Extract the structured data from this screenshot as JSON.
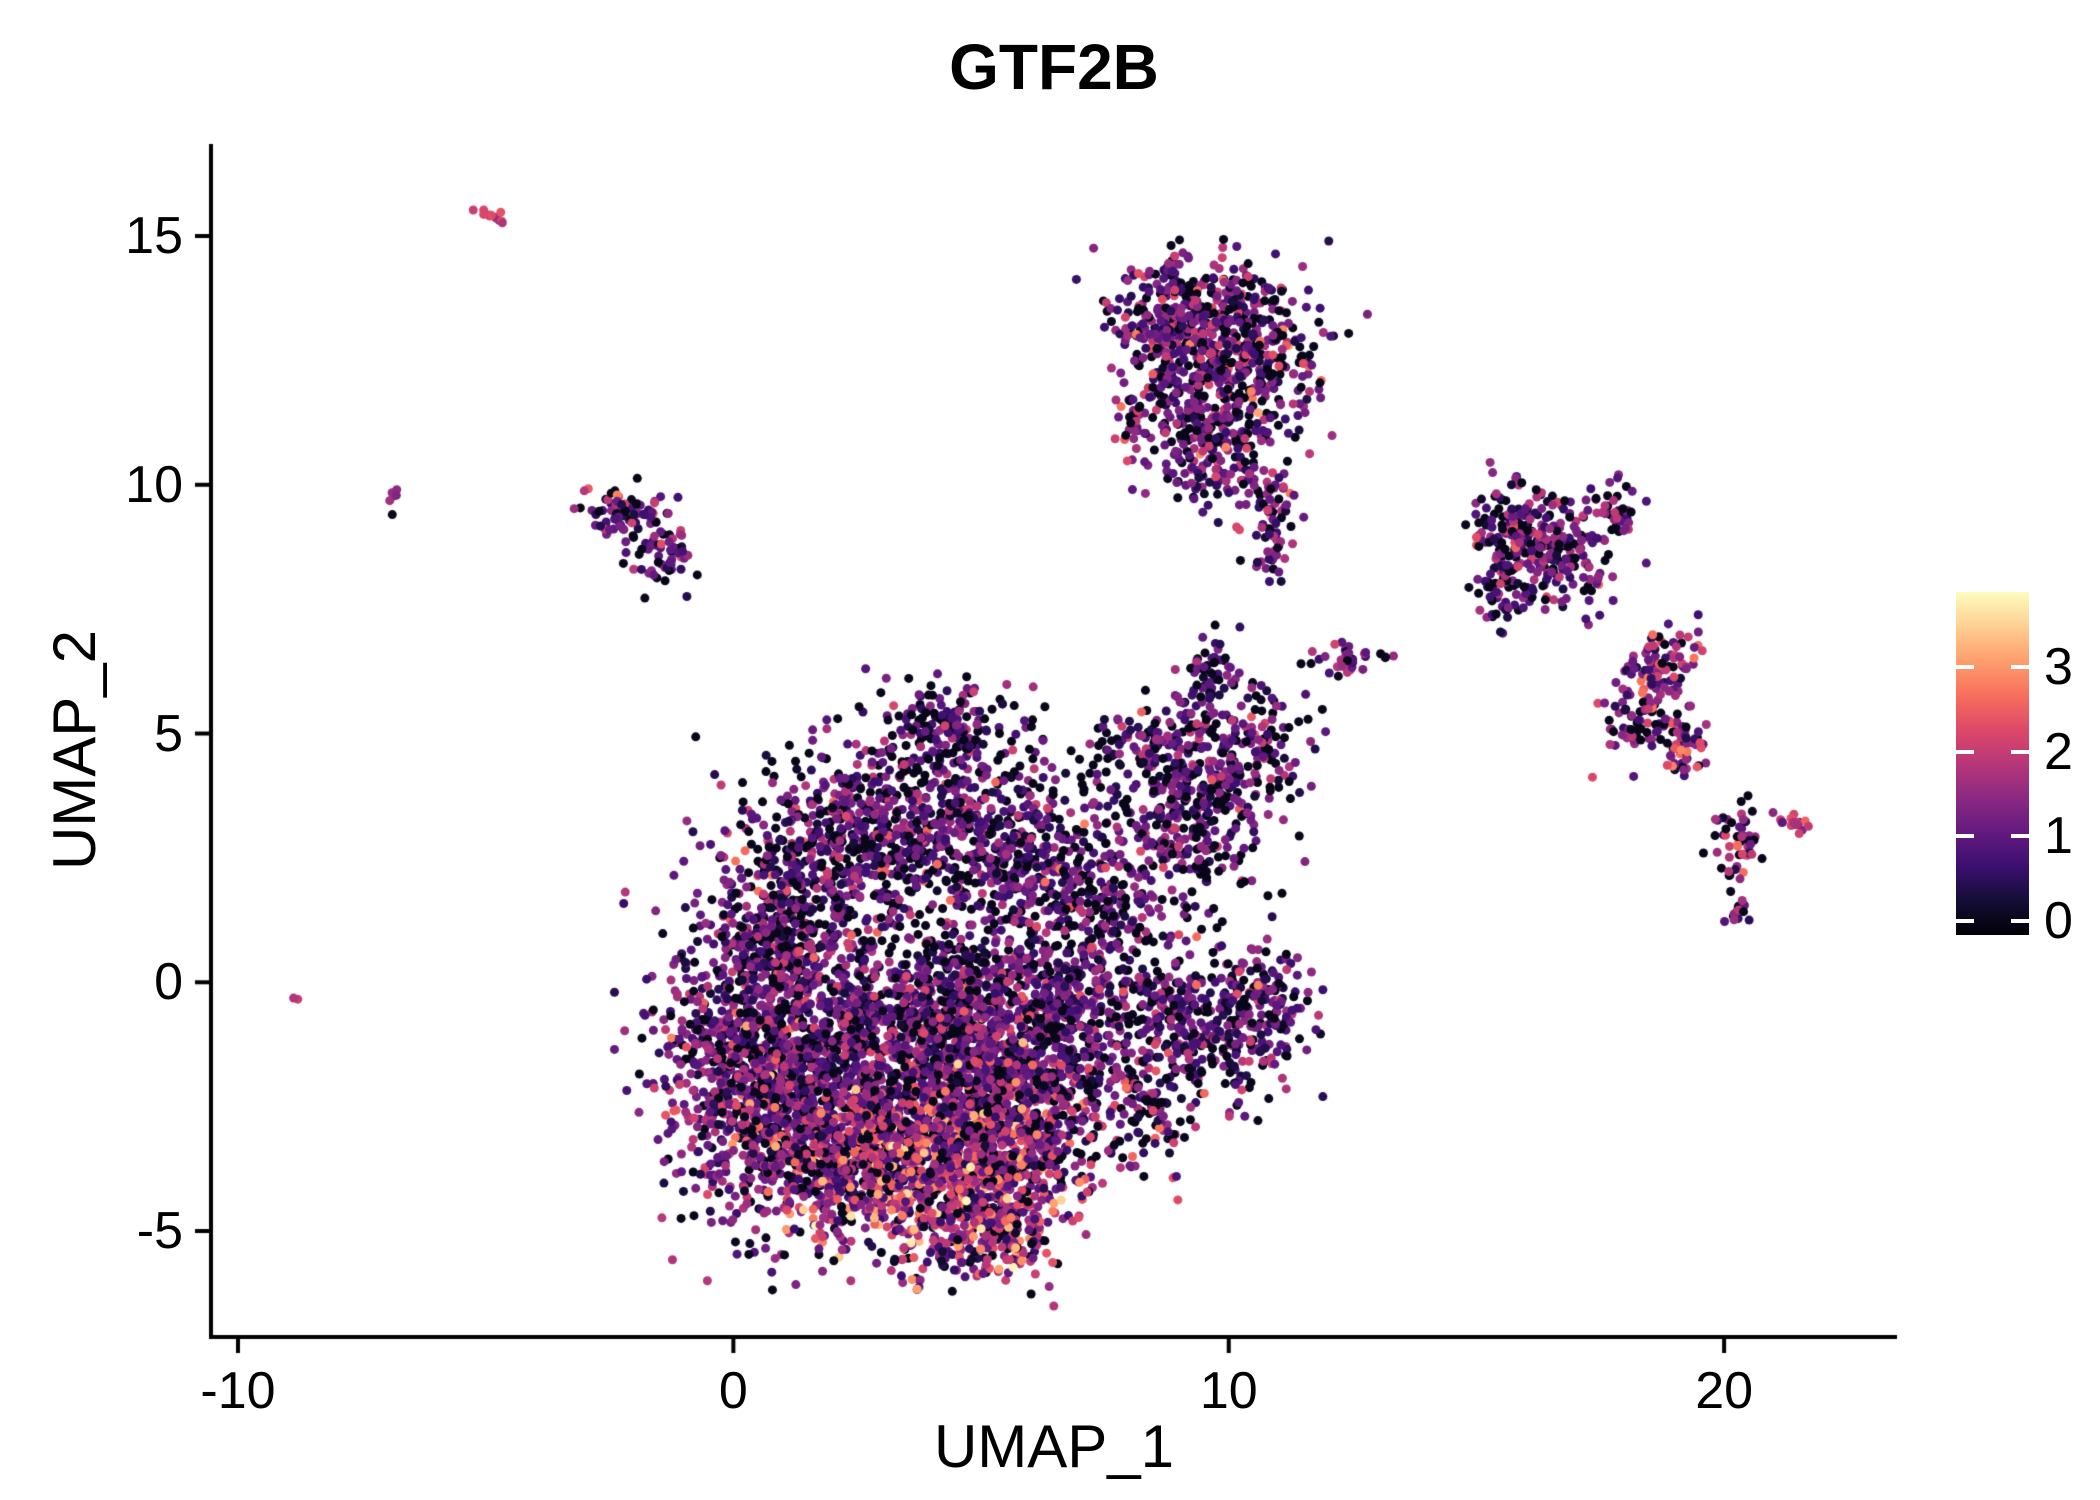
{
  "title": "GTF2B",
  "colors": {
    "background": "#ffffff",
    "axis": "#000000",
    "text": "#000000",
    "colorbar_tick": "#ffffff",
    "magma_anchors": [
      "#000004",
      "#140e36",
      "#3b0f70",
      "#641a80",
      "#8c2981",
      "#b73779",
      "#de4968",
      "#f7705c",
      "#fe9f6d",
      "#fecf92",
      "#fcfdbf"
    ]
  },
  "chart_data": {
    "type": "scatter",
    "title": "GTF2B",
    "xlabel": "UMAP_1",
    "ylabel": "UMAP_2",
    "xlim": [
      -10.545,
      23.49
    ],
    "ylim": [
      -7.13,
      16.85
    ],
    "x_ticks": [
      -10,
      0,
      10,
      20
    ],
    "y_ticks": [
      -5,
      0,
      5,
      10,
      15
    ],
    "grid": false,
    "point_radius_px": 4.5,
    "seed": 42,
    "legend": {
      "position": "right",
      "type": "colorbar",
      "colormap": "magma",
      "ticks": [
        0,
        1,
        2,
        3
      ],
      "bar_value_min": -0.165,
      "bar_value_max": 3.89
    },
    "clusters": [
      {
        "cx": 0.3,
        "cy": -1.5,
        "sx": 0.9,
        "sy": 1.5,
        "n": 800,
        "p0": 0.18,
        "m": 1.15,
        "s": 0.6
      },
      {
        "cx": 1.6,
        "cy": -3.0,
        "sx": 1.0,
        "sy": 1.0,
        "n": 550,
        "p0": 0.15,
        "m": 1.4,
        "s": 0.8
      },
      {
        "cx": 3.2,
        "cy": -3.6,
        "sx": 1.1,
        "sy": 0.9,
        "n": 650,
        "p0": 0.14,
        "m": 1.7,
        "s": 0.9
      },
      {
        "cx": 4.8,
        "cy": -4.0,
        "sx": 1.0,
        "sy": 0.8,
        "n": 500,
        "p0": 0.14,
        "m": 1.8,
        "s": 0.9
      },
      {
        "cx": 5.9,
        "cy": -2.6,
        "sx": 0.9,
        "sy": 1.0,
        "n": 450,
        "p0": 0.18,
        "m": 1.4,
        "s": 0.8
      },
      {
        "cx": 4.5,
        "cy": -2.0,
        "sx": 1.2,
        "sy": 1.0,
        "n": 500,
        "p0": 0.2,
        "m": 1.3,
        "s": 0.7
      },
      {
        "cx": 2.6,
        "cy": -0.9,
        "sx": 1.2,
        "sy": 1.0,
        "n": 550,
        "p0": 0.22,
        "m": 1.1,
        "s": 0.6
      },
      {
        "cx": 4.8,
        "cy": -0.4,
        "sx": 1.0,
        "sy": 0.9,
        "n": 400,
        "p0": 0.27,
        "m": 1.0,
        "s": 0.6
      },
      {
        "cx": 6.6,
        "cy": -0.6,
        "sx": 0.8,
        "sy": 1.2,
        "n": 400,
        "p0": 0.2,
        "m": 1.1,
        "s": 0.6
      },
      {
        "cx": 2.2,
        "cy": 2.7,
        "sx": 1.2,
        "sy": 0.9,
        "n": 500,
        "p0": 0.27,
        "m": 1.1,
        "s": 0.7
      },
      {
        "cx": 4.3,
        "cy": 3.2,
        "sx": 1.1,
        "sy": 0.7,
        "n": 350,
        "p0": 0.27,
        "m": 1.0,
        "s": 0.6
      },
      {
        "cx": 6.0,
        "cy": 2.3,
        "sx": 0.8,
        "sy": 0.9,
        "n": 250,
        "p0": 0.25,
        "m": 1.0,
        "s": 0.6
      },
      {
        "cx": 4.3,
        "cy": 5.0,
        "sx": 0.9,
        "sy": 0.5,
        "n": 200,
        "p0": 0.3,
        "m": 0.9,
        "s": 0.6
      },
      {
        "cx": 5.3,
        "cy": -5.1,
        "sx": 0.7,
        "sy": 0.5,
        "n": 150,
        "p0": 0.14,
        "m": 1.6,
        "s": 0.9
      },
      {
        "cx": 7.5,
        "cy": 1.5,
        "sx": 0.5,
        "sy": 0.9,
        "n": 150,
        "p0": 0.25,
        "m": 1.0,
        "s": 0.6
      },
      {
        "cx": 0.9,
        "cy": 0.8,
        "sx": 0.7,
        "sy": 0.7,
        "n": 250,
        "p0": 0.2,
        "m": 1.1,
        "s": 0.6
      },
      {
        "cx": 9.2,
        "cy": -0.9,
        "sx": 0.9,
        "sy": 0.9,
        "n": 320,
        "p0": 0.25,
        "m": 1.0,
        "s": 0.6
      },
      {
        "cx": 10.7,
        "cy": -0.4,
        "sx": 0.5,
        "sy": 0.6,
        "n": 130,
        "p0": 0.25,
        "m": 1.0,
        "s": 0.6
      },
      {
        "cx": 8.4,
        "cy": -2.3,
        "sx": 0.5,
        "sy": 0.8,
        "n": 110,
        "p0": 0.2,
        "m": 1.2,
        "s": 0.7
      },
      {
        "cx": 9.0,
        "cy": 3.3,
        "sx": 0.9,
        "sy": 0.9,
        "n": 300,
        "p0": 0.25,
        "m": 1.0,
        "s": 0.6
      },
      {
        "cx": 10.3,
        "cy": 4.6,
        "sx": 0.7,
        "sy": 0.7,
        "n": 200,
        "p0": 0.25,
        "m": 1.0,
        "s": 0.6
      },
      {
        "cx": 8.3,
        "cy": 4.9,
        "sx": 0.5,
        "sy": 0.4,
        "n": 80,
        "p0": 0.25,
        "m": 1.0,
        "s": 0.6
      },
      {
        "cx": 9.7,
        "cy": 6.1,
        "sx": 0.3,
        "sy": 0.4,
        "n": 60,
        "p0": 0.25,
        "m": 1.0,
        "s": 0.6
      },
      {
        "cx": 12.4,
        "cy": 6.5,
        "sx": 0.4,
        "sy": 0.15,
        "n": 35,
        "p0": 0.2,
        "m": 1.2,
        "s": 0.6
      },
      {
        "cx": 9.1,
        "cy": 13.4,
        "sx": 0.8,
        "sy": 0.55,
        "n": 260,
        "p0": 0.2,
        "m": 1.2,
        "s": 0.7
      },
      {
        "cx": 10.4,
        "cy": 12.5,
        "sx": 0.8,
        "sy": 0.8,
        "n": 300,
        "p0": 0.22,
        "m": 1.1,
        "s": 0.7
      },
      {
        "cx": 9.1,
        "cy": 11.9,
        "sx": 0.6,
        "sy": 0.8,
        "n": 200,
        "p0": 0.25,
        "m": 1.1,
        "s": 0.6
      },
      {
        "cx": 9.8,
        "cy": 10.7,
        "sx": 0.5,
        "sy": 0.6,
        "n": 150,
        "p0": 0.25,
        "m": 1.1,
        "s": 0.6
      },
      {
        "cx": 10.9,
        "cy": 9.3,
        "sx": 0.25,
        "sy": 0.7,
        "n": 70,
        "p0": 0.2,
        "m": 1.2,
        "s": 0.7
      },
      {
        "cx": 8.0,
        "cy": 11.3,
        "sx": 0.12,
        "sy": 0.4,
        "n": 25,
        "p0": 0.1,
        "m": 1.6,
        "s": 0.6
      },
      {
        "cx": 8.9,
        "cy": 14.4,
        "sx": 0.1,
        "sy": 0.3,
        "n": 18,
        "p0": 0.2,
        "m": 1.2,
        "s": 0.6
      },
      {
        "cx": 15.9,
        "cy": 9.1,
        "sx": 0.5,
        "sy": 0.45,
        "n": 170,
        "p0": 0.25,
        "m": 1.1,
        "s": 0.6
      },
      {
        "cx": 16.8,
        "cy": 8.5,
        "sx": 0.6,
        "sy": 0.5,
        "n": 130,
        "p0": 0.25,
        "m": 1.1,
        "s": 0.6
      },
      {
        "cx": 17.8,
        "cy": 9.5,
        "sx": 0.3,
        "sy": 0.25,
        "n": 45,
        "p0": 0.2,
        "m": 1.2,
        "s": 0.6
      },
      {
        "cx": 15.5,
        "cy": 7.9,
        "sx": 0.25,
        "sy": 0.4,
        "n": 50,
        "p0": 0.25,
        "m": 1.0,
        "s": 0.6
      },
      {
        "cx": 18.5,
        "cy": 5.9,
        "sx": 0.3,
        "sy": 0.7,
        "rot": -25,
        "n": 150,
        "p0": 0.13,
        "m": 1.5,
        "s": 0.7
      },
      {
        "cx": 19.1,
        "cy": 4.8,
        "sx": 0.25,
        "sy": 0.35,
        "n": 60,
        "p0": 0.13,
        "m": 1.5,
        "s": 0.7
      },
      {
        "cx": 20.3,
        "cy": 2.7,
        "sx": 0.25,
        "sy": 0.35,
        "n": 50,
        "p0": 0.2,
        "m": 1.2,
        "s": 0.7
      },
      {
        "cx": 21.4,
        "cy": 3.2,
        "sx": 0.28,
        "sy": 0.07,
        "rot": -20,
        "n": 16,
        "p0": 0.05,
        "m": 1.8,
        "s": 0.5
      },
      {
        "cx": 20.3,
        "cy": 1.3,
        "sx": 0.12,
        "sy": 0.18,
        "n": 12,
        "p0": 0.3,
        "m": 1.0,
        "s": 0.5
      },
      {
        "cx": -2.1,
        "cy": 9.4,
        "sx": 0.45,
        "sy": 0.3,
        "n": 85,
        "p0": 0.25,
        "m": 1.1,
        "s": 0.6
      },
      {
        "cx": -1.4,
        "cy": 8.5,
        "sx": 0.3,
        "sy": 0.3,
        "n": 50,
        "p0": 0.25,
        "m": 1.1,
        "s": 0.6
      },
      {
        "cx": -4.8,
        "cy": 15.4,
        "sx": 0.18,
        "sy": 0.06,
        "rot": -20,
        "n": 12,
        "p0": 0.05,
        "m": 2.0,
        "s": 0.4
      },
      {
        "cx": -6.85,
        "cy": 9.7,
        "sx": 0.08,
        "sy": 0.12,
        "n": 7,
        "p0": 0.2,
        "m": 1.5,
        "s": 0.5
      },
      {
        "cx": -8.8,
        "cy": -0.4,
        "sx": 0.05,
        "sy": 0.05,
        "n": 2,
        "p0": 0,
        "m": 1.8,
        "s": 0.3
      }
    ]
  }
}
